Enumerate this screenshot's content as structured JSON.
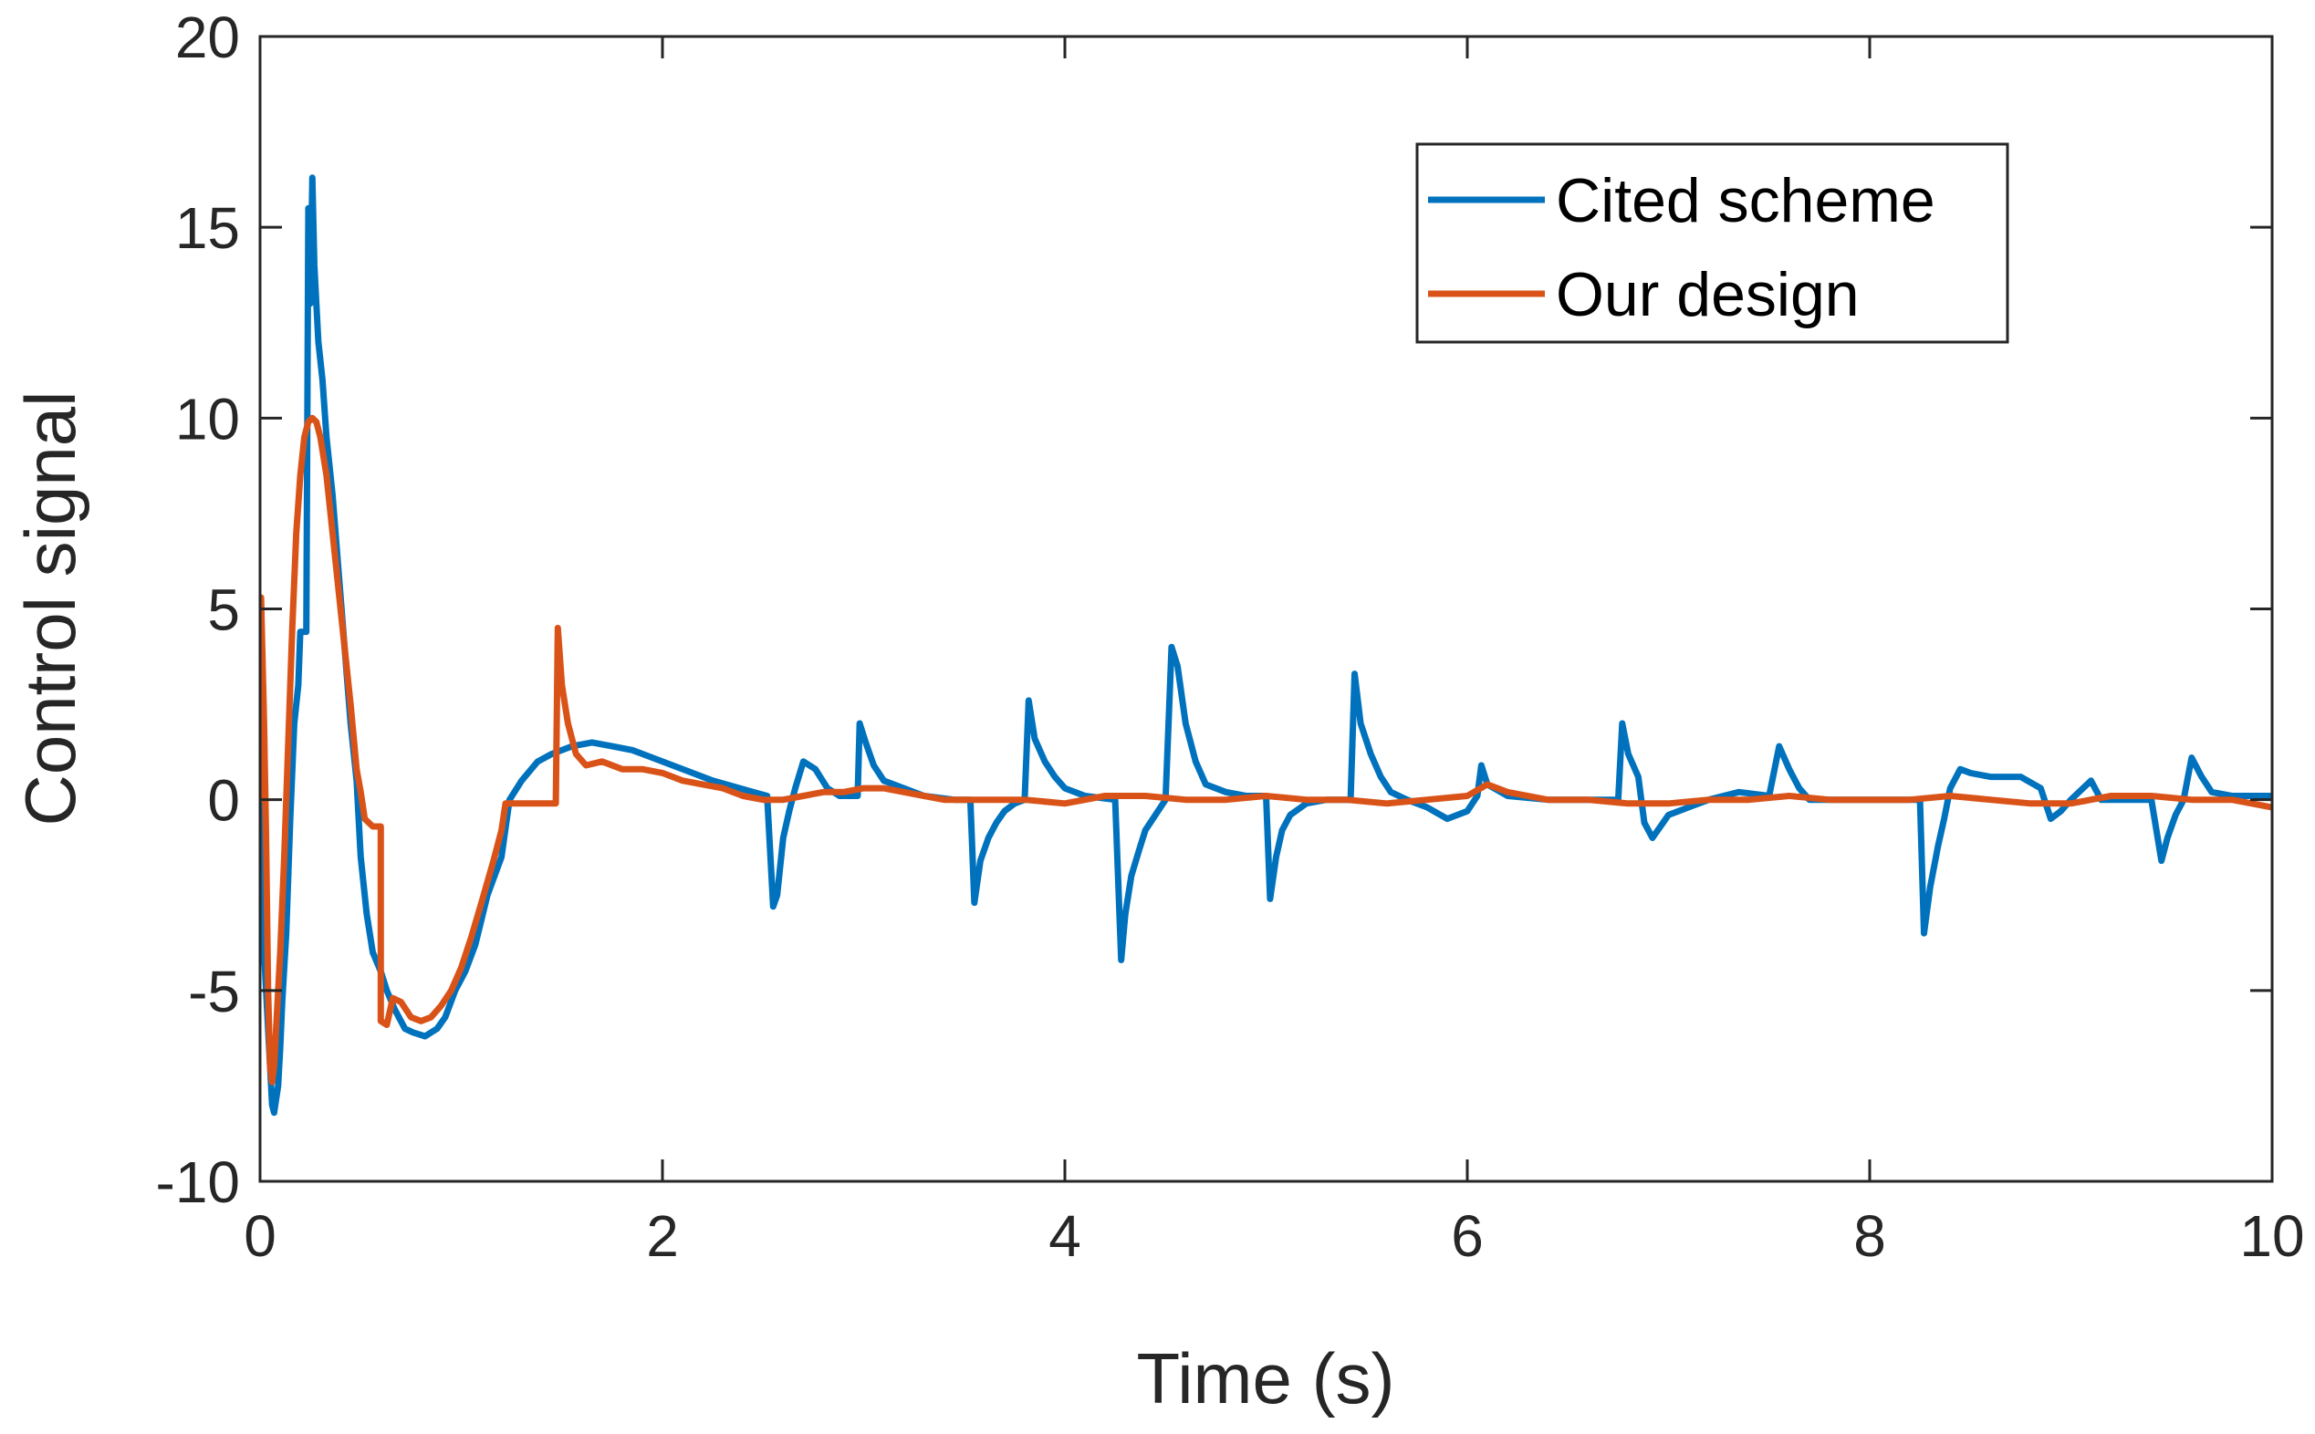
{
  "chart_data": {
    "type": "line",
    "title": "",
    "xlabel": "Time (s)",
    "ylabel": "Control signal",
    "xlim": [
      0,
      10
    ],
    "ylim": [
      -10,
      20
    ],
    "xticks": [
      0,
      2,
      4,
      6,
      8,
      10
    ],
    "xtick_labels": [
      "0",
      "2",
      "4",
      "6",
      "8",
      "10"
    ],
    "yticks": [
      -10,
      -5,
      0,
      5,
      10,
      15,
      20
    ],
    "ytick_labels": [
      "-10",
      "-5",
      "0",
      "5",
      "10",
      "15",
      "20"
    ],
    "grid": false,
    "legend_position": "top-right",
    "series": [
      {
        "name": "Cited scheme",
        "color": "#0072BD",
        "points": [
          [
            0,
            0
          ],
          [
            0.01,
            -3
          ],
          [
            0.03,
            -5
          ],
          [
            0.05,
            -7
          ],
          [
            0.06,
            -8
          ],
          [
            0.07,
            -8.2
          ],
          [
            0.09,
            -7.5
          ],
          [
            0.1,
            -6.5
          ],
          [
            0.11,
            -5.3
          ],
          [
            0.13,
            -3.5
          ],
          [
            0.15,
            -0.5
          ],
          [
            0.17,
            2
          ],
          [
            0.19,
            3
          ],
          [
            0.2,
            4.4
          ],
          [
            0.23,
            4.4
          ],
          [
            0.24,
            15.5
          ],
          [
            0.25,
            13
          ],
          [
            0.26,
            16.3
          ],
          [
            0.27,
            14
          ],
          [
            0.29,
            12
          ],
          [
            0.31,
            11
          ],
          [
            0.33,
            9.5
          ],
          [
            0.36,
            8
          ],
          [
            0.39,
            6
          ],
          [
            0.42,
            4
          ],
          [
            0.45,
            2
          ],
          [
            0.48,
            0.5
          ],
          [
            0.5,
            -1.5
          ],
          [
            0.53,
            -3
          ],
          [
            0.56,
            -4
          ],
          [
            0.6,
            -4.5
          ],
          [
            0.63,
            -5
          ],
          [
            0.67,
            -5.5
          ],
          [
            0.72,
            -6
          ],
          [
            0.76,
            -6.1
          ],
          [
            0.82,
            -6.2
          ],
          [
            0.88,
            -6
          ],
          [
            0.92,
            -5.7
          ],
          [
            0.97,
            -5
          ],
          [
            1.02,
            -4.5
          ],
          [
            1.07,
            -3.8
          ],
          [
            1.13,
            -2.5
          ],
          [
            1.2,
            -1.5
          ],
          [
            1.24,
            0
          ],
          [
            1.3,
            0.5
          ],
          [
            1.38,
            1
          ],
          [
            1.45,
            1.2
          ],
          [
            1.55,
            1.4
          ],
          [
            1.65,
            1.5
          ],
          [
            1.75,
            1.4
          ],
          [
            1.85,
            1.3
          ],
          [
            1.95,
            1.1
          ],
          [
            2.05,
            0.9
          ],
          [
            2.15,
            0.7
          ],
          [
            2.25,
            0.5
          ],
          [
            2.35,
            0.35
          ],
          [
            2.45,
            0.2
          ],
          [
            2.52,
            0.1
          ],
          [
            2.55,
            -2.8
          ],
          [
            2.57,
            -2.5
          ],
          [
            2.6,
            -1
          ],
          [
            2.63,
            -0.3
          ],
          [
            2.66,
            0.3
          ],
          [
            2.7,
            1
          ],
          [
            2.76,
            0.8
          ],
          [
            2.82,
            0.3
          ],
          [
            2.88,
            0.1
          ],
          [
            2.97,
            0.1
          ],
          [
            2.98,
            2
          ],
          [
            3.01,
            1.5
          ],
          [
            3.05,
            0.9
          ],
          [
            3.1,
            0.5
          ],
          [
            3.2,
            0.3
          ],
          [
            3.3,
            0.1
          ],
          [
            3.45,
            0
          ],
          [
            3.53,
            0
          ],
          [
            3.55,
            -2.7
          ],
          [
            3.58,
            -1.6
          ],
          [
            3.62,
            -1
          ],
          [
            3.66,
            -0.6
          ],
          [
            3.7,
            -0.3
          ],
          [
            3.75,
            -0.1
          ],
          [
            3.8,
            0
          ],
          [
            3.82,
            2.6
          ],
          [
            3.85,
            1.6
          ],
          [
            3.9,
            1
          ],
          [
            3.95,
            0.6
          ],
          [
            4.0,
            0.3
          ],
          [
            4.1,
            0.1
          ],
          [
            4.25,
            0
          ],
          [
            4.28,
            -4.2
          ],
          [
            4.3,
            -3
          ],
          [
            4.33,
            -2
          ],
          [
            4.37,
            -1.3
          ],
          [
            4.4,
            -0.8
          ],
          [
            4.45,
            -0.4
          ],
          [
            4.5,
            0
          ],
          [
            4.53,
            4
          ],
          [
            4.56,
            3.5
          ],
          [
            4.6,
            2
          ],
          [
            4.65,
            1
          ],
          [
            4.7,
            0.4
          ],
          [
            4.8,
            0.2
          ],
          [
            4.9,
            0.1
          ],
          [
            5.0,
            0.1
          ],
          [
            5.02,
            -2.6
          ],
          [
            5.05,
            -1.5
          ],
          [
            5.08,
            -0.8
          ],
          [
            5.12,
            -0.4
          ],
          [
            5.2,
            -0.1
          ],
          [
            5.3,
            0
          ],
          [
            5.42,
            0
          ],
          [
            5.44,
            3.3
          ],
          [
            5.47,
            2
          ],
          [
            5.52,
            1.2
          ],
          [
            5.57,
            0.6
          ],
          [
            5.62,
            0.2
          ],
          [
            5.7,
            0
          ],
          [
            5.8,
            -0.2
          ],
          [
            5.9,
            -0.5
          ],
          [
            6.0,
            -0.3
          ],
          [
            6.05,
            0.1
          ],
          [
            6.07,
            0.9
          ],
          [
            6.1,
            0.4
          ],
          [
            6.2,
            0.1
          ],
          [
            6.4,
            0
          ],
          [
            6.6,
            0
          ],
          [
            6.75,
            0
          ],
          [
            6.77,
            2
          ],
          [
            6.8,
            1.2
          ],
          [
            6.85,
            0.6
          ],
          [
            6.88,
            -0.6
          ],
          [
            6.92,
            -1
          ],
          [
            6.96,
            -0.7
          ],
          [
            7.0,
            -0.4
          ],
          [
            7.1,
            -0.2
          ],
          [
            7.2,
            0
          ],
          [
            7.35,
            0.2
          ],
          [
            7.5,
            0.1
          ],
          [
            7.55,
            1.4
          ],
          [
            7.6,
            0.8
          ],
          [
            7.65,
            0.3
          ],
          [
            7.7,
            0
          ],
          [
            7.9,
            0
          ],
          [
            8.1,
            0
          ],
          [
            8.25,
            0
          ],
          [
            8.27,
            -3.5
          ],
          [
            8.3,
            -2.3
          ],
          [
            8.34,
            -1.2
          ],
          [
            8.37,
            -0.5
          ],
          [
            8.4,
            0.3
          ],
          [
            8.45,
            0.8
          ],
          [
            8.5,
            0.7
          ],
          [
            8.6,
            0.6
          ],
          [
            8.75,
            0.6
          ],
          [
            8.85,
            0.3
          ],
          [
            8.9,
            -0.5
          ],
          [
            8.95,
            -0.3
          ],
          [
            9.0,
            0
          ],
          [
            9.1,
            0.5
          ],
          [
            9.15,
            0
          ],
          [
            9.4,
            0
          ],
          [
            9.45,
            -1.6
          ],
          [
            9.48,
            -1
          ],
          [
            9.52,
            -0.4
          ],
          [
            9.56,
            0
          ],
          [
            9.6,
            1.1
          ],
          [
            9.65,
            0.6
          ],
          [
            9.7,
            0.2
          ],
          [
            9.8,
            0.1
          ],
          [
            10.0,
            0.1
          ]
        ]
      },
      {
        "name": "Our design",
        "color": "#D95319",
        "points": [
          [
            0,
            0
          ],
          [
            0.005,
            5.3
          ],
          [
            0.02,
            2
          ],
          [
            0.03,
            -1
          ],
          [
            0.04,
            -5
          ],
          [
            0.05,
            -7
          ],
          [
            0.06,
            -7.4
          ],
          [
            0.07,
            -7
          ],
          [
            0.08,
            -6
          ],
          [
            0.1,
            -4
          ],
          [
            0.12,
            -1.5
          ],
          [
            0.14,
            1.5
          ],
          [
            0.16,
            4.5
          ],
          [
            0.18,
            7
          ],
          [
            0.2,
            8.5
          ],
          [
            0.22,
            9.5
          ],
          [
            0.24,
            9.9
          ],
          [
            0.26,
            10
          ],
          [
            0.28,
            9.9
          ],
          [
            0.3,
            9.5
          ],
          [
            0.33,
            8.5
          ],
          [
            0.36,
            7
          ],
          [
            0.39,
            5.5
          ],
          [
            0.42,
            4
          ],
          [
            0.45,
            2.5
          ],
          [
            0.48,
            0.8
          ],
          [
            0.5,
            0.2
          ],
          [
            0.52,
            -0.5
          ],
          [
            0.56,
            -0.7
          ],
          [
            0.6,
            -0.7
          ],
          [
            0.6,
            -5.8
          ],
          [
            0.63,
            -5.9
          ],
          [
            0.66,
            -5.2
          ],
          [
            0.7,
            -5.3
          ],
          [
            0.75,
            -5.7
          ],
          [
            0.8,
            -5.8
          ],
          [
            0.85,
            -5.7
          ],
          [
            0.9,
            -5.4
          ],
          [
            0.95,
            -5
          ],
          [
            1.0,
            -4.4
          ],
          [
            1.05,
            -3.6
          ],
          [
            1.1,
            -2.7
          ],
          [
            1.16,
            -1.6
          ],
          [
            1.2,
            -0.8
          ],
          [
            1.22,
            -0.1
          ],
          [
            1.3,
            -0.1
          ],
          [
            1.4,
            -0.1
          ],
          [
            1.47,
            -0.1
          ],
          [
            1.48,
            4.5
          ],
          [
            1.5,
            3
          ],
          [
            1.53,
            2
          ],
          [
            1.57,
            1.2
          ],
          [
            1.62,
            0.9
          ],
          [
            1.7,
            1
          ],
          [
            1.8,
            0.8
          ],
          [
            1.9,
            0.8
          ],
          [
            2.0,
            0.7
          ],
          [
            2.1,
            0.5
          ],
          [
            2.2,
            0.4
          ],
          [
            2.3,
            0.3
          ],
          [
            2.4,
            0.1
          ],
          [
            2.5,
            0
          ],
          [
            2.6,
            0
          ],
          [
            2.7,
            0.1
          ],
          [
            2.8,
            0.2
          ],
          [
            2.9,
            0.2
          ],
          [
            3.0,
            0.3
          ],
          [
            3.1,
            0.3
          ],
          [
            3.2,
            0.2
          ],
          [
            3.3,
            0.1
          ],
          [
            3.4,
            0
          ],
          [
            3.5,
            0
          ],
          [
            3.6,
            0
          ],
          [
            3.8,
            0
          ],
          [
            4.0,
            -0.1
          ],
          [
            4.2,
            0.1
          ],
          [
            4.4,
            0.1
          ],
          [
            4.6,
            0
          ],
          [
            4.8,
            0
          ],
          [
            5.0,
            0.1
          ],
          [
            5.2,
            0
          ],
          [
            5.4,
            0
          ],
          [
            5.6,
            -0.1
          ],
          [
            5.8,
            0
          ],
          [
            6.0,
            0.1
          ],
          [
            6.1,
            0.4
          ],
          [
            6.2,
            0.2
          ],
          [
            6.4,
            0
          ],
          [
            6.6,
            0
          ],
          [
            6.8,
            -0.1
          ],
          [
            7.0,
            -0.1
          ],
          [
            7.2,
            0
          ],
          [
            7.4,
            0
          ],
          [
            7.6,
            0.1
          ],
          [
            7.8,
            0
          ],
          [
            8.0,
            0
          ],
          [
            8.2,
            0
          ],
          [
            8.4,
            0.1
          ],
          [
            8.6,
            0
          ],
          [
            8.8,
            -0.1
          ],
          [
            9.0,
            -0.1
          ],
          [
            9.2,
            0.1
          ],
          [
            9.4,
            0.1
          ],
          [
            9.6,
            0
          ],
          [
            9.8,
            0
          ],
          [
            10.0,
            -0.2
          ]
        ]
      }
    ]
  }
}
